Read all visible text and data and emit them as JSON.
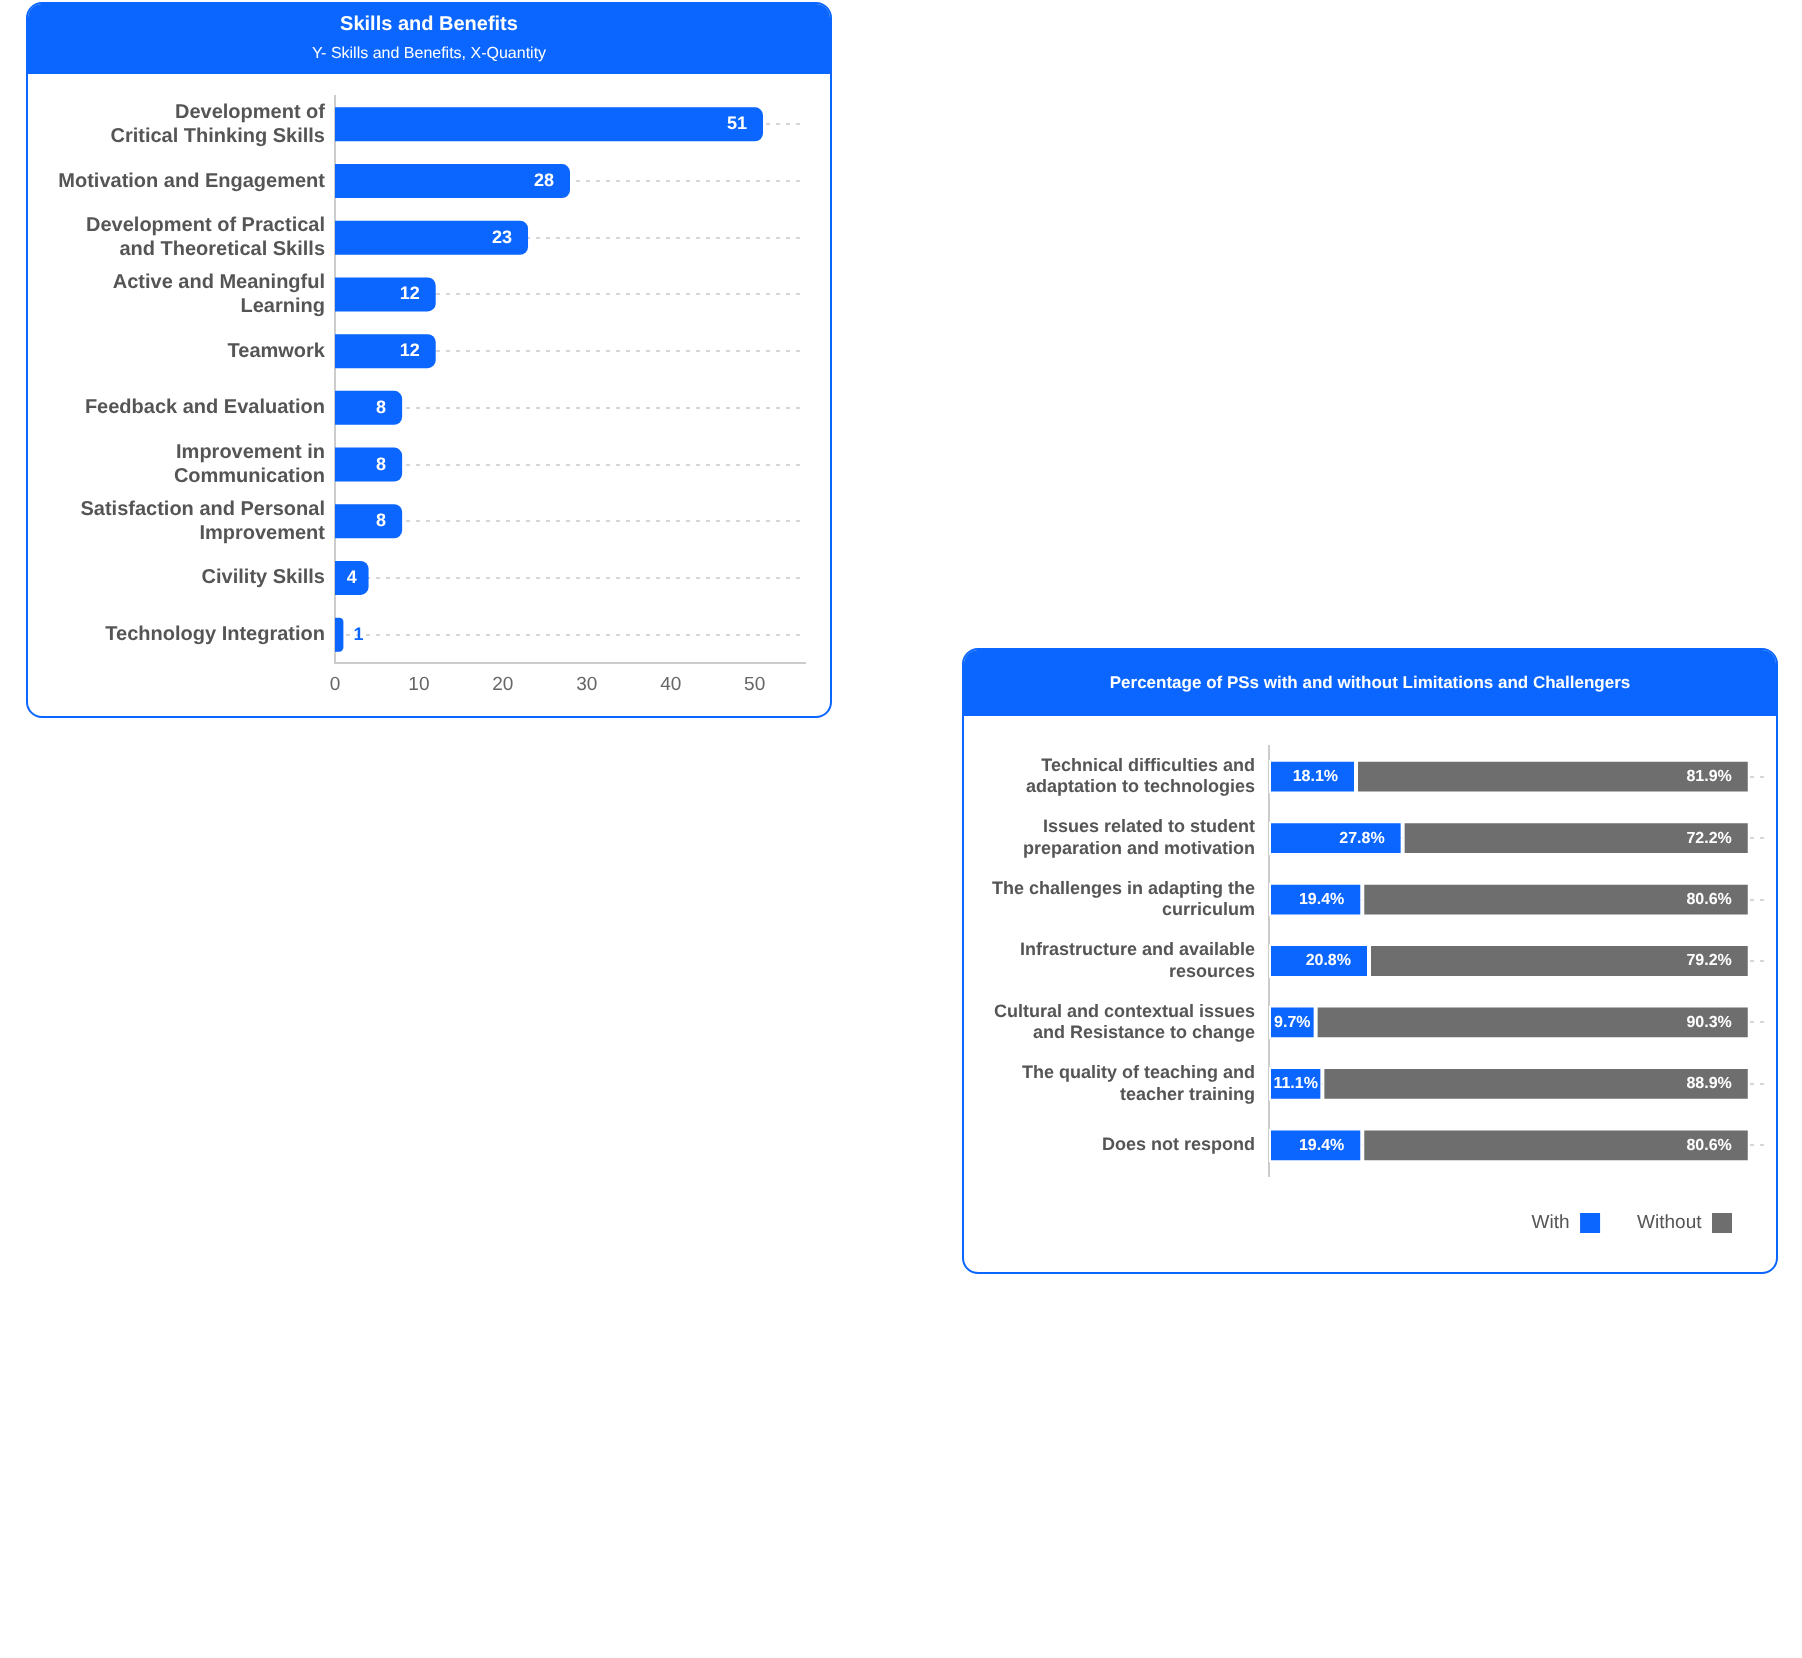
{
  "chart_data": [
    {
      "type": "bar",
      "title": "Skills and Benefits",
      "subtitle": "Y- Skills and Benefits, X-Quantity",
      "orientation": "horizontal",
      "categories": [
        "Development of\nCritical Thinking Skills",
        "Motivation and Engagement",
        "Development of Practical\nand Theoretical Skills",
        "Active and Meaningful\nLearning",
        "Teamwork",
        "Feedback and Evaluation",
        "Improvement in\nCommunication",
        "Satisfaction and Personal\nImprovement",
        "Civility Skills",
        "Technology Integration"
      ],
      "values": [
        51,
        28,
        23,
        12,
        12,
        8,
        8,
        8,
        4,
        1
      ],
      "color": "#0a66ff",
      "xlim": [
        0,
        56
      ],
      "xticks": [
        0,
        10,
        20,
        30,
        40,
        50
      ],
      "grid": "y",
      "data_labels": true
    },
    {
      "type": "bar",
      "title": "Percentage of PSs with and without Limitations and Challengers",
      "orientation": "horizontal",
      "stacked": true,
      "categories": [
        "Technical difficulties and\nadaptation to technologies",
        "Issues related to student\npreparation and motivation",
        "The challenges in adapting the\ncurriculum",
        "Infrastructure and available\nresources",
        "Cultural and contextual issues\nand Resistance to change",
        "The quality of teaching and\nteacher training",
        "Does not respond"
      ],
      "series": [
        {
          "name": "With",
          "color": "#0a66ff",
          "values": [
            18.1,
            27.8,
            19.4,
            20.8,
            9.7,
            11.1,
            19.4
          ],
          "value_labels": [
            "18.1%",
            "27.8%",
            "19.4%",
            "20.8%",
            "9.7%",
            "11.1%",
            "19.4%"
          ]
        },
        {
          "name": "Without",
          "color": "#6e6e6e",
          "values": [
            81.9,
            72.2,
            80.6,
            79.2,
            90.3,
            88.9,
            80.6
          ],
          "value_labels": [
            "81.9%",
            "72.2%",
            "80.6%",
            "79.2%",
            "90.3%",
            "88.9%",
            "80.6%"
          ]
        }
      ],
      "xlim": [
        0,
        104
      ],
      "tick_labels": "y",
      "grid": "y",
      "legend": "bottom right"
    }
  ]
}
